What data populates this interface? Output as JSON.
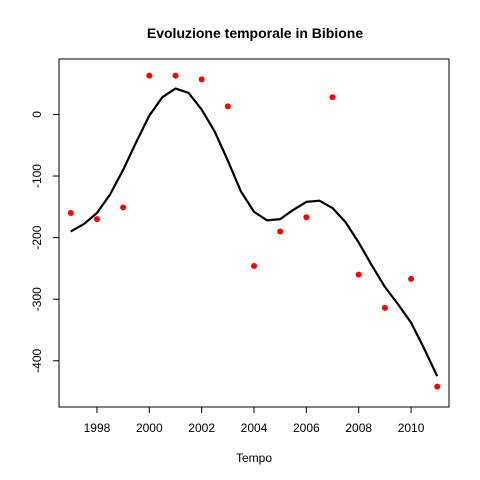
{
  "chart_data": {
    "type": "scatter",
    "title": "Evoluzione temporale in Bibione",
    "xlabel": "Tempo",
    "ylabel": "",
    "xlim": [
      1996.55,
      2011.45
    ],
    "ylim": [
      -475,
      90
    ],
    "x_ticks": [
      1998,
      2000,
      2002,
      2004,
      2006,
      2008,
      2010
    ],
    "y_ticks": [
      0,
      -100,
      -200,
      -300,
      -400
    ],
    "grid": false,
    "legend": "none",
    "point_color": "#ff0000",
    "line_color": "#000000",
    "points": {
      "x": [
        1997,
        1998,
        1999,
        2000,
        2001,
        2002,
        2003,
        2004,
        2005,
        2006,
        2007,
        2008,
        2009,
        2010,
        2011
      ],
      "y": [
        -160,
        -170,
        -151,
        63,
        63,
        57,
        13,
        -246,
        -190,
        -167,
        28,
        -260,
        -314,
        -267,
        -442
      ]
    },
    "smooth_line": {
      "x": [
        1997,
        1997.5,
        1998,
        1998.5,
        1999,
        1999.5,
        2000,
        2000.5,
        2001,
        2001.5,
        2002,
        2002.5,
        2003,
        2003.5,
        2004,
        2004.5,
        2005,
        2005.5,
        2006,
        2006.5,
        2007,
        2007.5,
        2008,
        2008.5,
        2009,
        2009.5,
        2010,
        2010.5,
        2011
      ],
      "y": [
        -190,
        -178,
        -160,
        -130,
        -90,
        -45,
        -2,
        28,
        42,
        35,
        8,
        -28,
        -75,
        -125,
        -158,
        -172,
        -170,
        -155,
        -142,
        -140,
        -152,
        -175,
        -208,
        -245,
        -280,
        -308,
        -338,
        -380,
        -425
      ]
    }
  }
}
